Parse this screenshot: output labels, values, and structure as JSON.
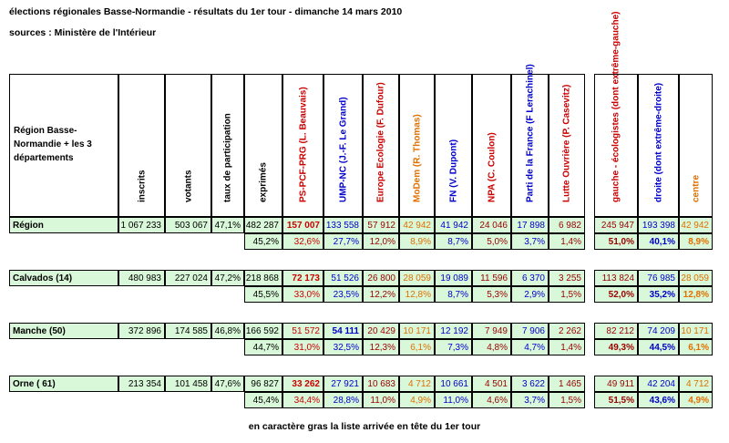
{
  "title": "élections régionales Basse-Normandie - résultats du 1er tour - dimanche 14 mars 2010",
  "source": "sources : Ministère de l'Intérieur",
  "region_header": "Région Basse-Normandie + les 3 départements",
  "columns": [
    {
      "label": "inscrits",
      "color": "#000000"
    },
    {
      "label": "votants",
      "color": "#000000"
    },
    {
      "label": "taux de participation",
      "color": "#000000"
    },
    {
      "label": "exprimés",
      "color": "#000000"
    },
    {
      "label": "PS-PCF-PRG (L. Beauvais)",
      "color": "#cc0000"
    },
    {
      "label": "UMP-NC (J.-F. Le Grand)",
      "color": "#0000cc"
    },
    {
      "label": "Europe Ecologie (F. Dufour)",
      "color": "#cc0000"
    },
    {
      "label": "MoDem (R. Thomas)",
      "color": "#e07000"
    },
    {
      "label": "FN (V. Dupont)",
      "color": "#0000cc"
    },
    {
      "label": "NPA (C. Coulon)",
      "color": "#cc0000"
    },
    {
      "label": "Parti de la France (F Lerachinel)",
      "color": "#0000cc"
    },
    {
      "label": "Lutte Ouvrière (P. Casevitz)",
      "color": "#cc0000"
    },
    {
      "label": "gauche - écologistes (dont extrême-gauche)",
      "color": "#cc0000"
    },
    {
      "label": "droite (dont extrême-droite)",
      "color": "#0000cc"
    },
    {
      "label": "centre",
      "color": "#e07000"
    }
  ],
  "rows": [
    {
      "name": "Région",
      "values": [
        "1 067 233",
        "503 067",
        "47,1%",
        "482 287",
        "157 007",
        "133 558",
        "57 912",
        "42 942",
        "41 942",
        "24 046",
        "17 898",
        "6 982",
        "245 947",
        "193 398",
        "42 942"
      ],
      "pcts": [
        "",
        "",
        "",
        "45,2%",
        "32,6%",
        "27,7%",
        "12,0%",
        "8,9%",
        "8,7%",
        "5,0%",
        "3,7%",
        "1,4%",
        "51,0%",
        "40,1%",
        "8,9%"
      ],
      "bold_index": 4
    },
    {
      "name": "Calvados (14)",
      "values": [
        "480 983",
        "227 024",
        "47,2%",
        "218 868",
        "72 173",
        "51 526",
        "26 800",
        "28 059",
        "19 089",
        "11 596",
        "6 370",
        "3 255",
        "113 824",
        "76 985",
        "28 059"
      ],
      "pcts": [
        "",
        "",
        "",
        "45,5%",
        "33,0%",
        "23,5%",
        "12,2%",
        "12,8%",
        "8,7%",
        "5,3%",
        "2,9%",
        "1,5%",
        "52,0%",
        "35,2%",
        "12,8%"
      ],
      "bold_index": 4
    },
    {
      "name": "Manche (50)",
      "values": [
        "372 896",
        "174 585",
        "46,8%",
        "166 592",
        "51 572",
        "54 111",
        "20 429",
        "10 171",
        "12 192",
        "7 949",
        "7 906",
        "2 262",
        "82 212",
        "74 209",
        "10 171"
      ],
      "pcts": [
        "",
        "",
        "",
        "44,7%",
        "31,0%",
        "32,5%",
        "12,3%",
        "6,1%",
        "7,3%",
        "4,8%",
        "4,7%",
        "1,4%",
        "49,3%",
        "44,5%",
        "6,1%"
      ],
      "bold_index": 5
    },
    {
      "name": "Orne ( 61)",
      "values": [
        "213 354",
        "101 458",
        "47,6%",
        "96 827",
        "33 262",
        "27 921",
        "10 683",
        "4 712",
        "10 661",
        "4 501",
        "3 622",
        "1 465",
        "49 911",
        "42 204",
        "4 712"
      ],
      "pcts": [
        "",
        "",
        "",
        "45,4%",
        "34,4%",
        "28,8%",
        "11,0%",
        "4,9%",
        "11,0%",
        "4,6%",
        "3,7%",
        "1,5%",
        "51,5%",
        "43,6%",
        "4,9%"
      ],
      "bold_index": 4
    }
  ],
  "footnote": "en caractère gras la liste arrivée en tête du 1er tour"
}
